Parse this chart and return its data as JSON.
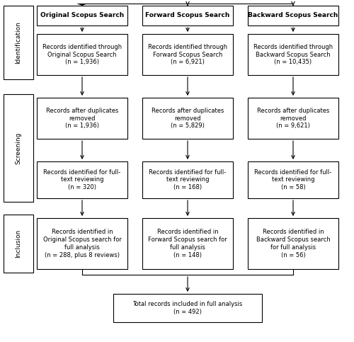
{
  "bg_color": "#ffffff",
  "box_edge_color": "#000000",
  "box_fill_color": "#ffffff",
  "col_headers": [
    "Original Scopus Search",
    "Forward Scopus Search",
    "Backward Scopus Search"
  ],
  "row1_labels": [
    "Records identified through\nOriginal Scopus Search\n(n = 1,936)",
    "Records identified through\nForward Scopus Search\n(n = 6,921)",
    "Records identified through\nBackward Scopus Search\n(n = 10,435)"
  ],
  "row2_labels": [
    "Records after duplicates\nremoved\n(n = 1,936)",
    "Records after duplicates\nremoved\n(n = 5,829)",
    "Records after duplicates\nremoved\n(n = 9,621)"
  ],
  "row3_labels": [
    "Records identified for full-\ntext reviewing\n(n = 320)",
    "Records identified for full-\ntext reviewing\n(n = 168)",
    "Records identified for full-\ntext reviewing\n(n = 58)"
  ],
  "row4_labels": [
    "Records identified in\nOriginal Scopus search for\nfull analysis\n(n = 288, plus 8 reviews)",
    "Records identified in\nForward Scopus search for\nfull analysis\n(n = 148)",
    "Records identified in\nBackward Scopus search\nfor full analysis\n(n = 56)"
  ],
  "final_label": "Total records included in full analysis\n(n = 492)",
  "sidebar_labels": [
    "Identification",
    "Screening",
    "Inclusion"
  ],
  "font_size_box": 6.0,
  "font_size_header": 6.5,
  "font_size_sidebar": 6.5
}
